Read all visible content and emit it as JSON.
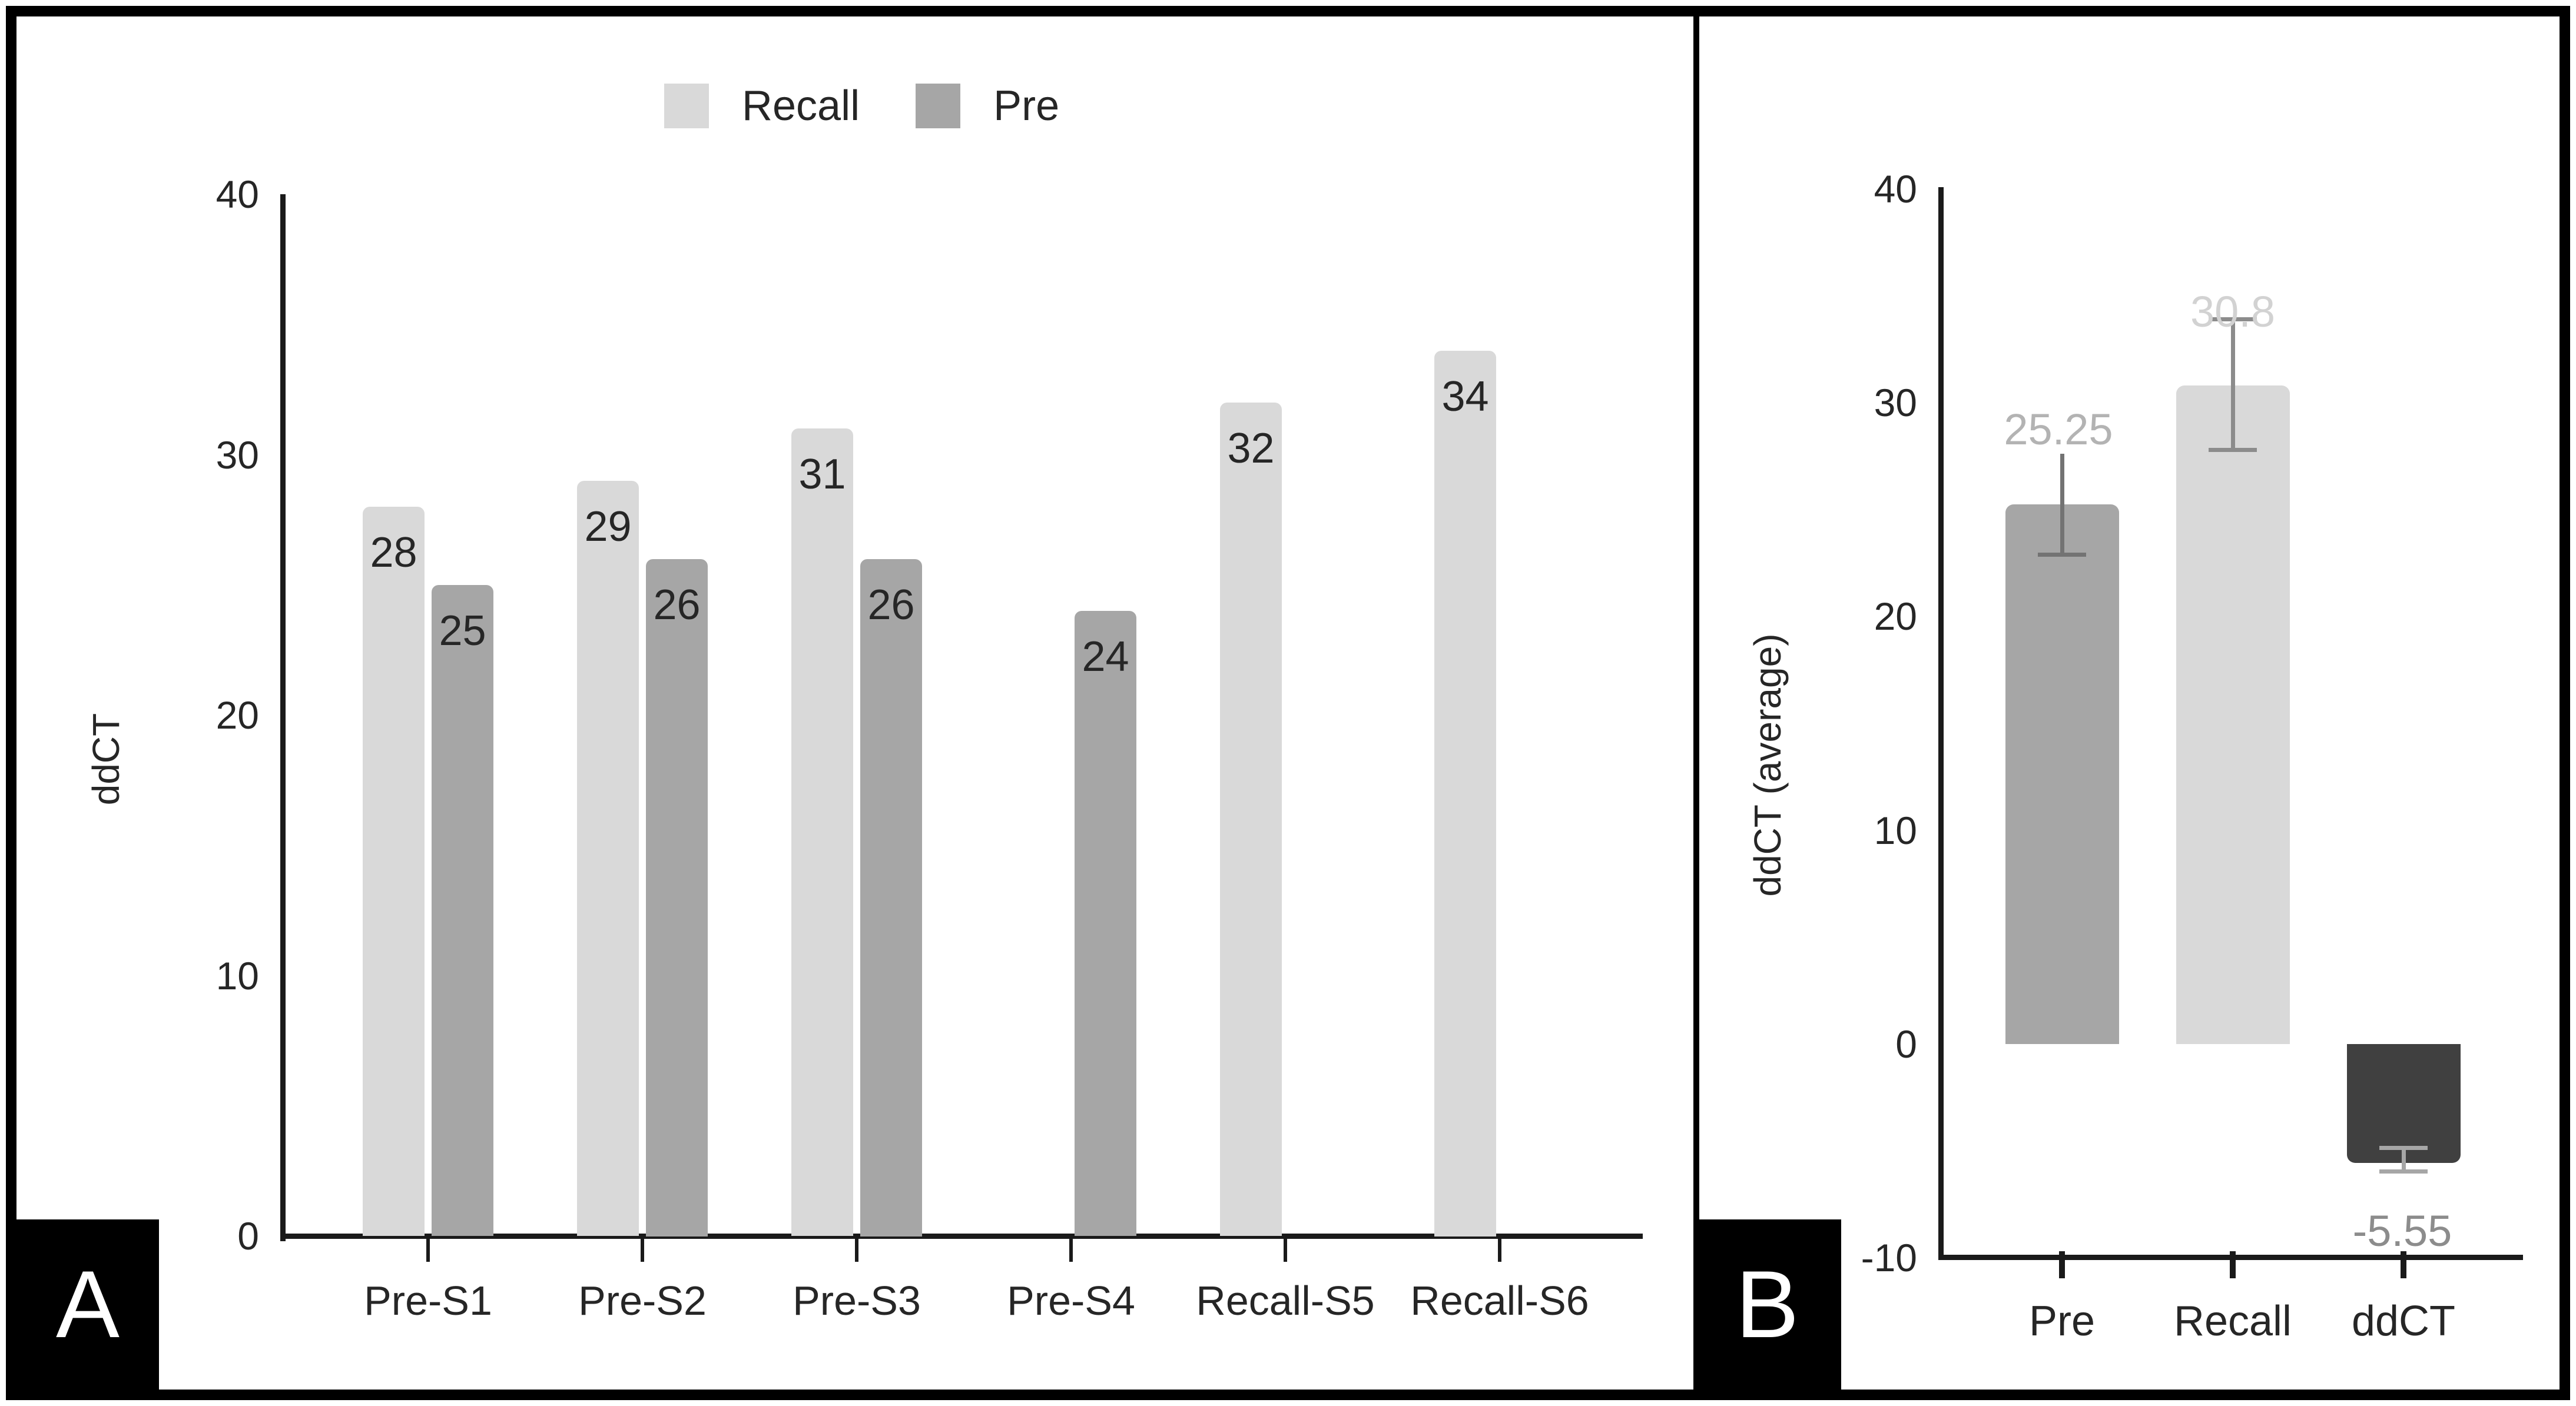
{
  "figure": {
    "panels": [
      {
        "label": "A"
      },
      {
        "label": "B"
      }
    ]
  },
  "chart_data": [
    {
      "panel": "A",
      "type": "bar",
      "title": "",
      "xlabel": "",
      "ylabel": "ddCT",
      "ylim": [
        0,
        40
      ],
      "yticks": [
        0,
        10,
        20,
        30,
        40
      ],
      "grid": false,
      "categories": [
        "Pre-S1",
        "Pre-S2",
        "Pre-S3",
        "Pre-S4",
        "Recall-S5",
        "Recall-S6"
      ],
      "series": [
        {
          "name": "Recall",
          "color": "#d9d9d9",
          "values": [
            28,
            29,
            31,
            null,
            32,
            34
          ]
        },
        {
          "name": "Pre",
          "color": "#a6a6a6",
          "values": [
            25,
            26,
            26,
            24,
            null,
            null
          ]
        }
      ],
      "bar_label_color": "#262626",
      "legend": {
        "position": "top",
        "entries": [
          {
            "label": "Recall",
            "color": "#d9d9d9"
          },
          {
            "label": "Pre",
            "color": "#a6a6a6"
          }
        ]
      }
    },
    {
      "panel": "B",
      "type": "bar",
      "title": "",
      "xlabel": "",
      "ylabel": "ddCT (average)",
      "ylim": [
        -10,
        40
      ],
      "yticks": [
        -10,
        0,
        10,
        20,
        30,
        40
      ],
      "grid": false,
      "categories": [
        "Pre",
        "Recall",
        "ddCT"
      ],
      "values": [
        25.25,
        30.8,
        -5.55
      ],
      "bar_colors": [
        "#a6a6a6",
        "#d9d9d9",
        "#404040"
      ],
      "value_labels": [
        "25.25",
        "30.8",
        "-5.55"
      ],
      "value_label_colors": [
        "#b3b3b3",
        "#d2d2d2",
        "#8c8c8c"
      ],
      "error_bars": [
        {
          "low": 22.9,
          "high": 27.6,
          "cap_top": false,
          "cap_bottom": true,
          "color": "#737373"
        },
        {
          "low": 27.8,
          "high": 33.9,
          "cap_top": true,
          "cap_bottom": true,
          "color": "#8c8c8c"
        },
        {
          "low": -5.95,
          "high": -4.85,
          "cap_top": true,
          "cap_bottom": true,
          "color": "#a6a6a6"
        }
      ]
    }
  ]
}
